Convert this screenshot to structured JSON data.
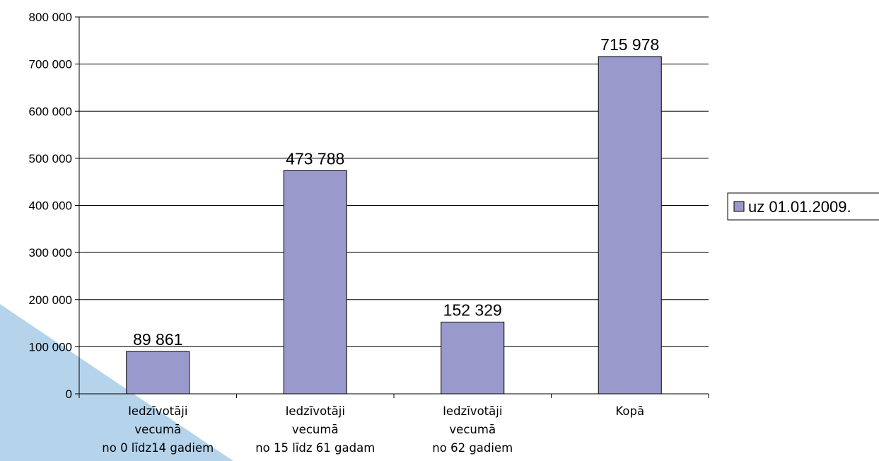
{
  "chart_data": {
    "type": "bar",
    "categories": [
      [
        "Iedzīvotāji",
        "vecumā",
        "no 0 līdz14 gadiem"
      ],
      [
        "Iedzīvotāji",
        "vecumā",
        "no 15 līdz 61 gadam"
      ],
      [
        "Iedzīvotāji",
        "vecumā",
        "no 62 gadiem"
      ],
      [
        "Kopā"
      ]
    ],
    "series": [
      {
        "name": "uz 01.01.2009.",
        "values": [
          89861,
          473788,
          152329,
          715978
        ],
        "value_labels": [
          "89 861",
          "473 788",
          "152 329",
          "715 978"
        ],
        "color": "#9999cc"
      }
    ],
    "ylim": [
      0,
      800000
    ],
    "ytick_values": [
      0,
      100000,
      200000,
      300000,
      400000,
      500000,
      600000,
      700000,
      800000
    ],
    "ytick_labels": [
      "0",
      "100 000",
      "200 000",
      "300 000",
      "400 000",
      "500 000",
      "600 000",
      "700 000",
      "800 000"
    ],
    "grid": true,
    "legend_position": "right",
    "decoration_color": "#b5d4ec"
  }
}
